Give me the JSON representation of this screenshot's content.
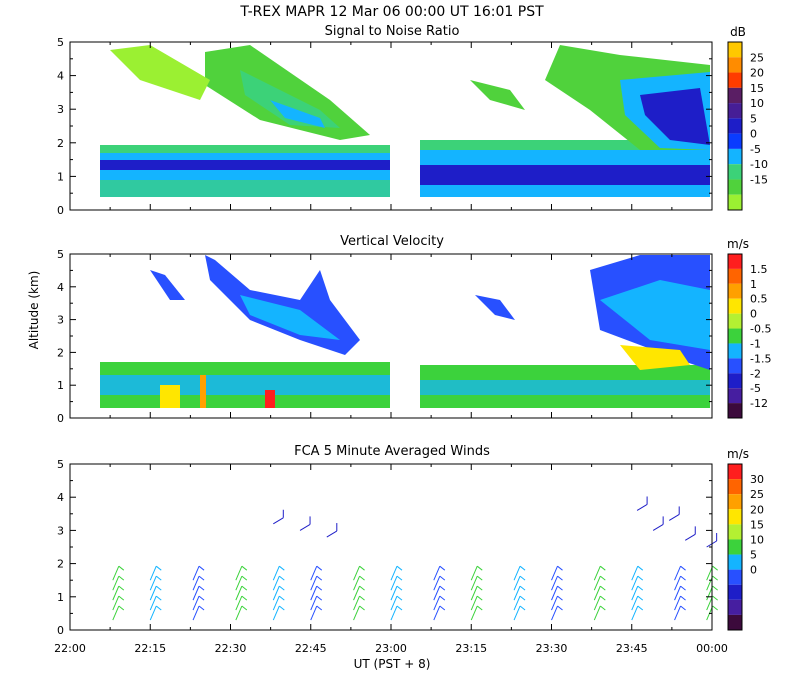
{
  "header": {
    "title": "T-REX   MAPR 12 Mar 06   00:00 UT   16:01   PST"
  },
  "chart_data": [
    {
      "type": "heatmap",
      "title": "Signal to Noise Ratio",
      "ylabel": "",
      "ylim": [
        0,
        5
      ],
      "yticks": [
        "0",
        "1",
        "2",
        "3",
        "4",
        "5"
      ],
      "colorbar": {
        "unit": "dB",
        "labels": [
          "25",
          "20",
          "15",
          "10",
          "5",
          "0",
          "-5",
          "-10",
          "-15"
        ],
        "colors": [
          "#ffc800",
          "#ff8c00",
          "#ff3c00",
          "#5a1e64",
          "#461e96",
          "#1e1ec8",
          "#0a3cff",
          "#14b4ff",
          "#3cd278",
          "#50d23c",
          "#9bf032"
        ]
      },
      "data_gap_ut": [
        "22:59",
        "23:07"
      ]
    },
    {
      "type": "heatmap",
      "title": "Vertical Velocity",
      "ylabel": "Altitude  (km)",
      "ylim": [
        0,
        5
      ],
      "yticks": [
        "0",
        "1",
        "2",
        "3",
        "4",
        "5"
      ],
      "colorbar": {
        "unit": "m/s",
        "labels": [
          "1.5",
          "1",
          "0.5",
          "0",
          "-0.5",
          "-1",
          "-1.5",
          "-2",
          "-5",
          "-12"
        ],
        "colors": [
          "#ff1e1e",
          "#ff6400",
          "#ffa000",
          "#ffe600",
          "#b4f032",
          "#3cd23c",
          "#14b4ff",
          "#2850ff",
          "#1e1ec8",
          "#461ea0",
          "#3c0a3c"
        ]
      },
      "data_gap_ut": [
        "22:59",
        "23:07"
      ]
    },
    {
      "type": "scatter",
      "title": "FCA 5 Minute Averaged Winds",
      "ylabel": "",
      "ylim": [
        0,
        5
      ],
      "yticks": [
        "0",
        "1",
        "2",
        "3",
        "4",
        "5"
      ],
      "xlabel": "UT   (PST + 8)",
      "xticks": [
        "22:00",
        "22:15",
        "22:30",
        "22:45",
        "23:00",
        "23:15",
        "23:30",
        "23:45",
        "00:00"
      ],
      "colorbar": {
        "unit": "m/s",
        "labels": [
          "30",
          "25",
          "20",
          "15",
          "10",
          "5",
          "0"
        ],
        "colors": [
          "#ff1e1e",
          "#ff6400",
          "#ffa000",
          "#ffe600",
          "#b4f032",
          "#3cd23c",
          "#14b4ff",
          "#2850ff",
          "#1e1ec8",
          "#461ea0",
          "#3c0a3c"
        ]
      },
      "barb_times_ut": [
        "22:08",
        "22:15",
        "22:23",
        "22:31",
        "22:38",
        "22:45",
        "22:53",
        "23:00",
        "23:08",
        "23:15",
        "23:23",
        "23:30",
        "23:38",
        "23:45",
        "23:53",
        "23:59"
      ]
    }
  ]
}
